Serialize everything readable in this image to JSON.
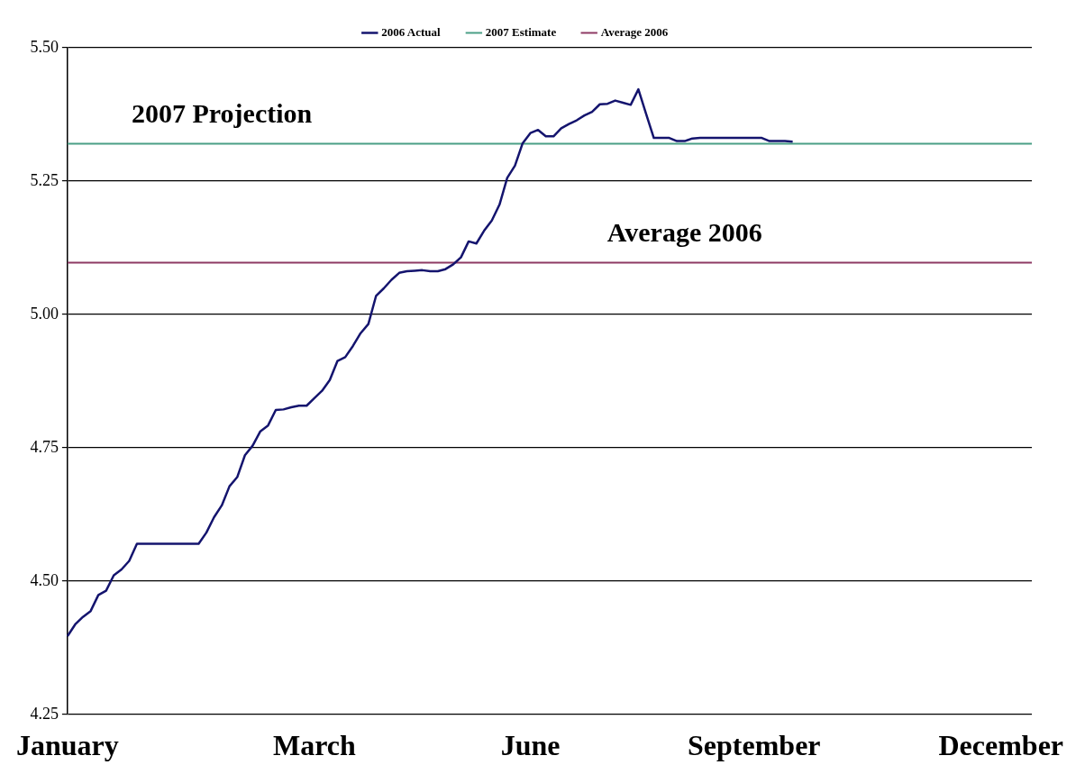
{
  "chart_data": {
    "type": "line",
    "categories": [
      "January",
      null,
      null,
      null,
      null,
      null,
      null,
      null,
      null,
      null,
      null,
      null,
      null,
      null,
      null,
      null,
      null,
      null,
      null,
      null,
      null,
      null,
      null,
      null,
      null,
      null,
      null,
      null,
      null,
      null,
      null,
      null,
      "March",
      null,
      null,
      null,
      null,
      null,
      null,
      null,
      null,
      null,
      null,
      null,
      null,
      null,
      null,
      null,
      null,
      null,
      null,
      null,
      null,
      null,
      null,
      null,
      null,
      null,
      null,
      null,
      "June",
      null,
      null,
      null,
      null,
      null,
      null,
      null,
      null,
      null,
      null,
      null,
      null,
      null,
      null,
      null,
      null,
      null,
      null,
      null,
      null,
      null,
      null,
      null,
      null,
      null,
      null,
      null,
      null,
      "September",
      null,
      null,
      null,
      null,
      null,
      null,
      null,
      null,
      null,
      null,
      null,
      null,
      null,
      null,
      null,
      null,
      null,
      null,
      null,
      null,
      null,
      null,
      null,
      null,
      null,
      null,
      null,
      null,
      null,
      null,
      null,
      "December",
      null,
      null,
      null,
      null
    ],
    "ylim": [
      4.25,
      5.5
    ],
    "yticks": [
      {
        "value": 4.25,
        "label": "4.25"
      },
      {
        "value": 4.5,
        "label": "4.50"
      },
      {
        "value": 4.75,
        "label": "4.75"
      },
      {
        "value": 5,
        "label": "5.00"
      },
      {
        "value": 5.25,
        "label": "5.25"
      },
      {
        "value": 5.5,
        "label": "5.50"
      }
    ],
    "grid": "y",
    "legend": "top",
    "marker": "none",
    "line_style": "solid",
    "series": [
      {
        "name": "2006 Actual",
        "color": "#14146e",
        "values": [
          4.397,
          4.419,
          4.433,
          4.444,
          4.474,
          4.482,
          4.511,
          4.522,
          4.538,
          4.57,
          4.57,
          4.57,
          4.57,
          4.57,
          4.57,
          4.57,
          4.57,
          4.57,
          4.591,
          4.62,
          4.642,
          4.678,
          4.695,
          4.736,
          4.754,
          4.781,
          4.792,
          4.821,
          4.822,
          4.826,
          4.829,
          4.829,
          4.843,
          4.857,
          4.877,
          4.913,
          4.92,
          4.941,
          4.965,
          4.982,
          5.035,
          5.049,
          5.065,
          5.078,
          5.081,
          5.082,
          5.083,
          5.081,
          5.081,
          5.085,
          5.094,
          5.107,
          5.137,
          5.133,
          5.157,
          5.176,
          5.206,
          5.256,
          5.279,
          5.321,
          5.34,
          5.346,
          5.334,
          5.334,
          5.349,
          5.357,
          5.364,
          5.373,
          5.38,
          5.394,
          5.395,
          5.401,
          5.397,
          5.393,
          5.422,
          5.376,
          5.331,
          5.331,
          5.331,
          5.325,
          5.325,
          5.33,
          5.331,
          5.331,
          5.331,
          5.331,
          5.331,
          5.331,
          5.331,
          5.331,
          5.331,
          5.325,
          5.325,
          5.325,
          5.324,
          null,
          null,
          null,
          null,
          null,
          null,
          null,
          null,
          null,
          null,
          null,
          null,
          null,
          null,
          null,
          null,
          null,
          null,
          null,
          null,
          null,
          null,
          null,
          null,
          null,
          null,
          null,
          null,
          null,
          null,
          null
        ]
      },
      {
        "name": "2007 Estimate",
        "color": "#4a9f86",
        "values": [
          5.32,
          5.32,
          5.32,
          5.32,
          5.32,
          5.32,
          5.32,
          5.32,
          5.32,
          5.32,
          5.32,
          5.32,
          5.32,
          5.32,
          5.32,
          5.32,
          5.32,
          5.32,
          5.32,
          5.32,
          5.32,
          5.32,
          5.32,
          5.32,
          5.32,
          5.32,
          5.32,
          5.32,
          5.32,
          5.32,
          5.32,
          5.32,
          5.32,
          5.32,
          5.32,
          5.32,
          5.32,
          5.32,
          5.32,
          5.32,
          5.32,
          5.32,
          5.32,
          5.32,
          5.32,
          5.32,
          5.32,
          5.32,
          5.32,
          5.32,
          5.32,
          5.32,
          5.32,
          5.32,
          5.32,
          5.32,
          5.32,
          5.32,
          5.32,
          5.32,
          5.32,
          5.32,
          5.32,
          5.32,
          5.32,
          5.32,
          5.32,
          5.32,
          5.32,
          5.32,
          5.32,
          5.32,
          5.32,
          5.32,
          5.32,
          5.32,
          5.32,
          5.32,
          5.32,
          5.32,
          5.32,
          5.32,
          5.32,
          5.32,
          5.32,
          5.32,
          5.32,
          5.32,
          5.32,
          5.32,
          5.32,
          5.32,
          5.32,
          5.32,
          5.32,
          5.32,
          5.32,
          5.32,
          5.32,
          5.32,
          5.32,
          5.32,
          5.32,
          5.32,
          5.32,
          5.32,
          5.32,
          5.32,
          5.32,
          5.32,
          5.32,
          5.32,
          5.32,
          5.32,
          5.32,
          5.32,
          5.32,
          5.32,
          5.32,
          5.32,
          5.32,
          5.32,
          5.32,
          5.32,
          5.32,
          5.32
        ]
      },
      {
        "name": "Average 2006",
        "color": "#8e3a64",
        "values": [
          5.097,
          5.097,
          5.097,
          5.097,
          5.097,
          5.097,
          5.097,
          5.097,
          5.097,
          5.097,
          5.097,
          5.097,
          5.097,
          5.097,
          5.097,
          5.097,
          5.097,
          5.097,
          5.097,
          5.097,
          5.097,
          5.097,
          5.097,
          5.097,
          5.097,
          5.097,
          5.097,
          5.097,
          5.097,
          5.097,
          5.097,
          5.097,
          5.097,
          5.097,
          5.097,
          5.097,
          5.097,
          5.097,
          5.097,
          5.097,
          5.097,
          5.097,
          5.097,
          5.097,
          5.097,
          5.097,
          5.097,
          5.097,
          5.097,
          5.097,
          5.097,
          5.097,
          5.097,
          5.097,
          5.097,
          5.097,
          5.097,
          5.097,
          5.097,
          5.097,
          5.097,
          5.097,
          5.097,
          5.097,
          5.097,
          5.097,
          5.097,
          5.097,
          5.097,
          5.097,
          5.097,
          5.097,
          5.097,
          5.097,
          5.097,
          5.097,
          5.097,
          5.097,
          5.097,
          5.097,
          5.097,
          5.097,
          5.097,
          5.097,
          5.097,
          5.097,
          5.097,
          5.097,
          5.097,
          5.097,
          5.097,
          5.097,
          5.097,
          5.097,
          5.097,
          5.097,
          5.097,
          5.097,
          5.097,
          5.097,
          5.097,
          5.097,
          5.097,
          5.097,
          5.097,
          5.097,
          5.097,
          5.097,
          5.097,
          5.097,
          5.097,
          5.097,
          5.097,
          5.097,
          5.097,
          5.097,
          5.097,
          5.097,
          5.097,
          5.097,
          5.097,
          5.097,
          5.097,
          5.097,
          5.097,
          5.097
        ]
      }
    ],
    "annotations": [
      {
        "text": "2007 Projection",
        "y": 5.32
      },
      {
        "text": "Average 2006",
        "y": 5.097
      }
    ]
  }
}
